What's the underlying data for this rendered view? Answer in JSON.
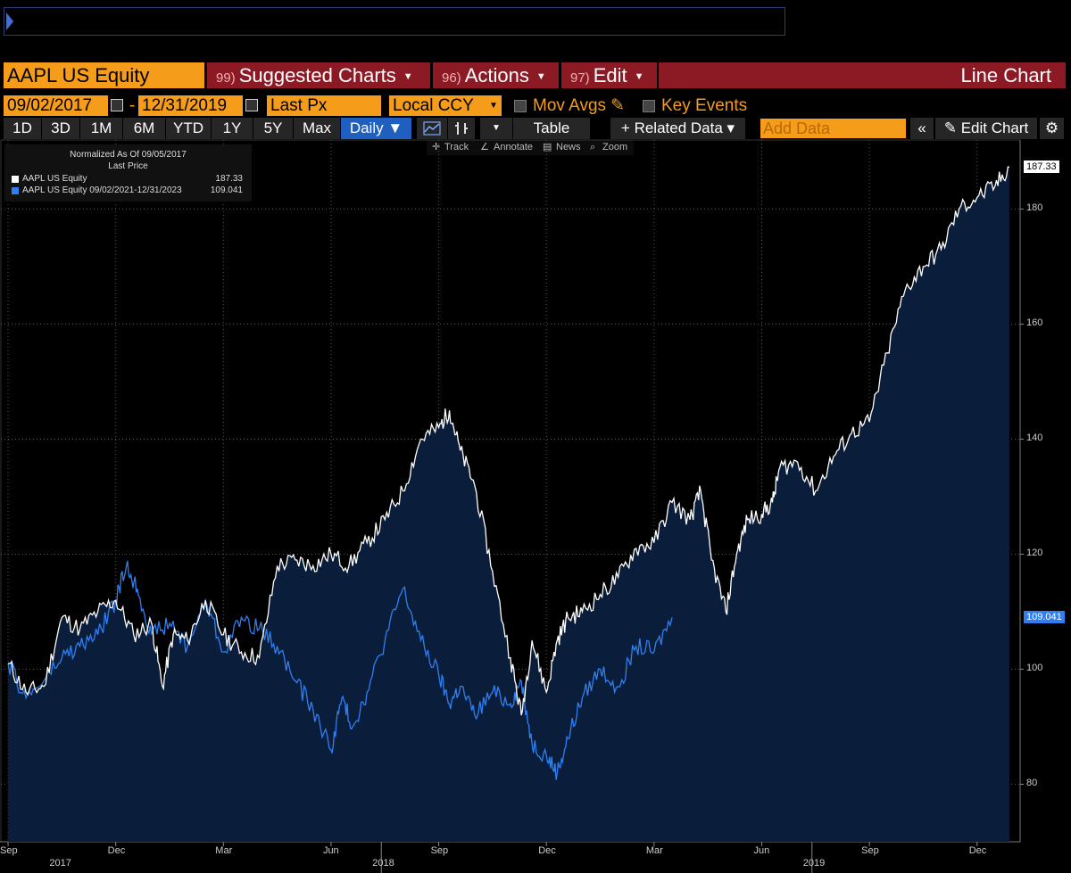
{
  "header": {
    "ticker": "AAPL US Equity",
    "suggested": {
      "num": "99)",
      "label": "Suggested Charts"
    },
    "actions": {
      "num": "96)",
      "label": "Actions"
    },
    "edit": {
      "num": "97)",
      "label": "Edit"
    },
    "chart_type": "Line Chart"
  },
  "controls": {
    "start_date": "09/02/2017",
    "end_date": "12/31/2019",
    "field": "Last Px",
    "currency": "Local CCY",
    "mov_avgs": "Mov Avgs",
    "key_events": "Key Events"
  },
  "toolbar": {
    "periods": [
      "1D",
      "3D",
      "1M",
      "6M",
      "YTD",
      "1Y",
      "5Y",
      "Max"
    ],
    "frequency": "Daily ▼",
    "table": "Table",
    "related": "+ Related Data ▾",
    "add_data_placeholder": "Add Data",
    "edit_chart": "Edit Chart",
    "sub": [
      "Track",
      "Annotate",
      "News",
      "Zoom"
    ]
  },
  "colors": {
    "accent": "#f59c1a",
    "red": "#8c1a24",
    "series1": "#ffffff",
    "series2": "#2f7ff0",
    "fill": "#0a1e3c"
  },
  "chart_data": {
    "type": "line",
    "legend": {
      "title": "Normalized As Of 09/05/2017",
      "subtitle": "Last Price",
      "entries": [
        {
          "label": "AAPL US Equity",
          "value": "187.33"
        },
        {
          "label": "AAPL US Equity 09/02/2021-12/31/2023",
          "value": "109.041"
        }
      ]
    },
    "y_ticks": [
      80,
      100,
      120,
      140,
      160,
      180
    ],
    "ylim": [
      70,
      192
    ],
    "x_ticks": [
      {
        "t": 0,
        "label": "Sep"
      },
      {
        "t": 3,
        "label": "Dec"
      },
      {
        "t": 6,
        "label": "Mar"
      },
      {
        "t": 9,
        "label": "Jun"
      },
      {
        "t": 12,
        "label": "Sep"
      },
      {
        "t": 15,
        "label": "Dec"
      },
      {
        "t": 18,
        "label": "Mar"
      },
      {
        "t": 21,
        "label": "Jun"
      },
      {
        "t": 24,
        "label": "Sep"
      },
      {
        "t": 27,
        "label": "Dec"
      }
    ],
    "year_labels": [
      {
        "t": 1.5,
        "label": "2017"
      },
      {
        "t": 10.5,
        "label": "2018"
      },
      {
        "t": 22.5,
        "label": "2019"
      }
    ],
    "xlim": [
      -0.2,
      28.2
    ],
    "series": [
      {
        "name": "AAPL US Equity",
        "last": "187.33",
        "t": [
          0,
          0.5,
          1,
          1.5,
          2,
          2.5,
          3,
          3.5,
          4,
          4.3,
          4.6,
          5,
          5.5,
          6,
          6.5,
          7,
          7.5,
          8,
          8.5,
          9,
          9.5,
          10,
          10.5,
          11,
          11.5,
          12,
          12.3,
          12.6,
          13,
          13.5,
          14,
          14.3,
          14.6,
          15,
          15.3,
          15.6,
          16,
          16.5,
          17,
          17.5,
          18,
          18.5,
          19,
          19.3,
          19.6,
          20,
          20.3,
          20.6,
          21,
          21.3,
          21.5,
          22,
          22.5,
          23,
          23.5,
          24,
          24.5,
          25,
          25.5,
          26,
          26.5,
          27,
          27.5,
          27.9
        ],
        "values": [
          101,
          96,
          97,
          109,
          107,
          110,
          112,
          106,
          108,
          97,
          106,
          105,
          112,
          106,
          103,
          102,
          118,
          119,
          118,
          120,
          118,
          122,
          126,
          131,
          140,
          142,
          145,
          138,
          132,
          117,
          102,
          92,
          105,
          96,
          105,
          109,
          110,
          113,
          116,
          121,
          122,
          129,
          126,
          131,
          119,
          110,
          120,
          126,
          127,
          129,
          135,
          136,
          131,
          137,
          141,
          143,
          155,
          166,
          170,
          173,
          180,
          182,
          184,
          187.3
        ]
      },
      {
        "name": "AAPL US Equity 09/02/2021-12/31/2023",
        "last": "109.041",
        "t": [
          0,
          0.5,
          1,
          1.5,
          2,
          2.5,
          3,
          3.3,
          3.6,
          4,
          4.5,
          5,
          5.5,
          6,
          6.5,
          7,
          7.5,
          8,
          8.5,
          9,
          9.3,
          9.6,
          10,
          10.5,
          11,
          11.5,
          12,
          12.3,
          12.6,
          13,
          13.5,
          14,
          14.3,
          14.6,
          15,
          15.3,
          15.6,
          16,
          16.5,
          17,
          17.5,
          18,
          18.5
        ],
        "values": [
          101,
          95,
          98,
          102,
          104,
          106,
          112,
          118,
          114,
          106,
          108,
          104,
          112,
          103,
          109,
          107,
          104,
          98,
          93,
          86,
          95,
          90,
          96,
          105,
          114,
          105,
          99,
          94,
          97,
          92,
          96,
          94,
          98,
          87,
          85,
          82,
          88,
          95,
          100,
          97,
          104,
          103,
          109
        ]
      }
    ]
  }
}
